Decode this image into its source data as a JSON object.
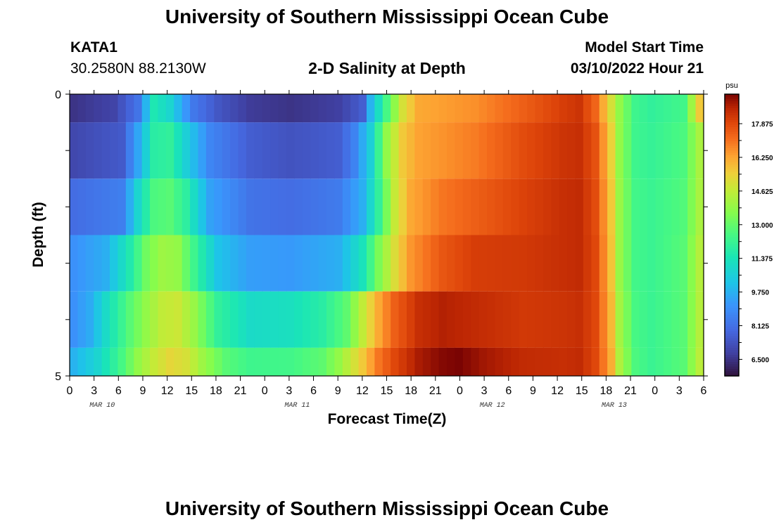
{
  "header": {
    "title": "University of Southern Mississippi Ocean Cube",
    "station": "KATA1",
    "coords": "30.2580N  88.2130W",
    "plot_title": "2-D Salinity at Depth",
    "model_label": "Model Start Time",
    "model_time": "03/10/2022 Hour 21"
  },
  "footer": {
    "title": "University of Southern Mississippi Ocean Cube"
  },
  "chart_data": {
    "type": "heatmap",
    "title": "2-D Salinity at Depth",
    "xlabel": "Forecast Time(Z)",
    "ylabel": "Depth (ft)",
    "x_tick_labels": [
      "0",
      "3",
      "6",
      "9",
      "12",
      "15",
      "18",
      "21",
      "0",
      "3",
      "6",
      "9",
      "12",
      "15",
      "18",
      "21",
      "0",
      "3",
      "6",
      "9",
      "12",
      "15",
      "18",
      "21",
      "0",
      "3",
      "6"
    ],
    "day_labels": [
      {
        "label": "MAR 10",
        "hour": 4
      },
      {
        "label": "MAR 11",
        "hour": 28
      },
      {
        "label": "MAR 12",
        "hour": 52
      },
      {
        "label": "MAR 13",
        "hour": 67
      }
    ],
    "y_tick_labels": [
      "0",
      "5"
    ],
    "ylim": [
      0,
      5
    ],
    "xlim_hours": [
      0,
      78
    ],
    "colorbar": {
      "unit": "psu",
      "range": [
        5.7,
        19.3
      ],
      "ticks": [
        "17.875",
        "16.250",
        "14.625",
        "13.000",
        "11.375",
        "9.750",
        "8.125",
        "6.500"
      ],
      "tick_values": [
        17.875,
        16.25,
        14.625,
        13.0,
        11.375,
        9.75,
        8.125,
        6.5
      ]
    },
    "rows": [
      {
        "depth_band": "0-0.5",
        "points": [
          [
            0,
            6.5
          ],
          [
            5,
            6.9
          ],
          [
            8,
            8.2
          ],
          [
            10,
            11.5
          ],
          [
            12,
            10.8
          ],
          [
            15,
            8.3
          ],
          [
            18,
            7.4
          ],
          [
            22,
            6.7
          ],
          [
            27,
            6.5
          ],
          [
            33,
            6.8
          ],
          [
            36,
            7.6
          ],
          [
            37,
            9.8
          ],
          [
            39,
            12.5
          ],
          [
            41,
            15.0
          ],
          [
            43,
            16.2
          ],
          [
            50,
            16.6
          ],
          [
            56,
            17.4
          ],
          [
            61,
            18.1
          ],
          [
            63,
            18.3
          ],
          [
            65,
            17.3
          ],
          [
            67,
            15.0
          ],
          [
            68,
            13.8
          ],
          [
            70,
            12.3
          ],
          [
            72,
            12.0
          ],
          [
            76,
            12.4
          ],
          [
            77,
            14.0
          ],
          [
            78,
            15.6
          ]
        ]
      },
      {
        "depth_band": "0.5-1.5",
        "points": [
          [
            0,
            7.0
          ],
          [
            6,
            7.5
          ],
          [
            8,
            9.5
          ],
          [
            10,
            11.8
          ],
          [
            12,
            12.0
          ],
          [
            14,
            10.6
          ],
          [
            17,
            8.7
          ],
          [
            22,
            7.6
          ],
          [
            27,
            7.3
          ],
          [
            33,
            7.6
          ],
          [
            35,
            8.6
          ],
          [
            37,
            10.6
          ],
          [
            39,
            13.8
          ],
          [
            41,
            15.6
          ],
          [
            43,
            16.3
          ],
          [
            50,
            16.9
          ],
          [
            56,
            17.8
          ],
          [
            61,
            18.3
          ],
          [
            63,
            18.4
          ],
          [
            65,
            17.7
          ],
          [
            67,
            15.4
          ],
          [
            68,
            13.8
          ],
          [
            70,
            12.3
          ],
          [
            72,
            12.1
          ],
          [
            76,
            12.6
          ],
          [
            78,
            14.2
          ]
        ]
      },
      {
        "depth_band": "1.5-2.5",
        "points": [
          [
            0,
            8.0
          ],
          [
            6,
            8.5
          ],
          [
            8,
            10.8
          ],
          [
            10,
            12.6
          ],
          [
            12,
            12.8
          ],
          [
            14,
            11.9
          ],
          [
            17,
            9.4
          ],
          [
            22,
            8.2
          ],
          [
            27,
            8.0
          ],
          [
            33,
            8.4
          ],
          [
            36,
            9.7
          ],
          [
            38,
            12.0
          ],
          [
            40,
            14.7
          ],
          [
            42,
            16.2
          ],
          [
            46,
            17.0
          ],
          [
            50,
            17.4
          ],
          [
            56,
            18.0
          ],
          [
            61,
            18.4
          ],
          [
            63,
            18.5
          ],
          [
            65,
            17.8
          ],
          [
            67,
            15.6
          ],
          [
            68,
            13.9
          ],
          [
            70,
            12.4
          ],
          [
            72,
            12.2
          ],
          [
            76,
            12.7
          ],
          [
            78,
            14.2
          ]
        ]
      },
      {
        "depth_band": "2.5-3.5",
        "points": [
          [
            0,
            9.0
          ],
          [
            4,
            9.7
          ],
          [
            7,
            11.6
          ],
          [
            9,
            13.2
          ],
          [
            11,
            14.0
          ],
          [
            13,
            13.8
          ],
          [
            15,
            12.3
          ],
          [
            18,
            10.2
          ],
          [
            22,
            9.3
          ],
          [
            27,
            9.2
          ],
          [
            33,
            9.7
          ],
          [
            36,
            11.3
          ],
          [
            38,
            13.4
          ],
          [
            40,
            15.1
          ],
          [
            42,
            16.5
          ],
          [
            46,
            17.6
          ],
          [
            50,
            18.1
          ],
          [
            56,
            18.2
          ],
          [
            61,
            18.4
          ],
          [
            63,
            18.5
          ],
          [
            65,
            17.9
          ],
          [
            67,
            15.7
          ],
          [
            68,
            13.9
          ],
          [
            70,
            12.4
          ],
          [
            72,
            12.2
          ],
          [
            76,
            12.8
          ],
          [
            78,
            14.4
          ]
        ]
      },
      {
        "depth_band": "3.5-4.5",
        "points": [
          [
            0,
            9.0
          ],
          [
            2,
            9.6
          ],
          [
            4,
            11.0
          ],
          [
            7,
            12.8
          ],
          [
            9,
            13.8
          ],
          [
            11,
            14.6
          ],
          [
            13,
            14.8
          ],
          [
            15,
            13.9
          ],
          [
            18,
            12.0
          ],
          [
            22,
            11.0
          ],
          [
            27,
            11.2
          ],
          [
            31,
            11.8
          ],
          [
            34,
            12.9
          ],
          [
            36,
            14.6
          ],
          [
            38,
            16.2
          ],
          [
            40,
            17.4
          ],
          [
            43,
            18.4
          ],
          [
            46,
            18.7
          ],
          [
            50,
            18.5
          ],
          [
            56,
            18.2
          ],
          [
            61,
            18.3
          ],
          [
            63,
            18.4
          ],
          [
            65,
            17.9
          ],
          [
            67,
            15.9
          ],
          [
            68,
            14.1
          ],
          [
            70,
            12.5
          ],
          [
            72,
            12.2
          ],
          [
            76,
            12.8
          ],
          [
            78,
            14.4
          ]
        ]
      },
      {
        "depth_band": "4.5-5",
        "points": [
          [
            0,
            9.8
          ],
          [
            3,
            10.8
          ],
          [
            6,
            12.5
          ],
          [
            8,
            13.8
          ],
          [
            10,
            14.7
          ],
          [
            12,
            15.3
          ],
          [
            14,
            15.0
          ],
          [
            16,
            14.0
          ],
          [
            19,
            12.8
          ],
          [
            22,
            12.3
          ],
          [
            27,
            12.4
          ],
          [
            31,
            12.9
          ],
          [
            33,
            13.8
          ],
          [
            36,
            15.6
          ],
          [
            38,
            17.0
          ],
          [
            40,
            17.9
          ],
          [
            43,
            18.8
          ],
          [
            46,
            19.2
          ],
          [
            48,
            19.3
          ],
          [
            51,
            18.9
          ],
          [
            56,
            18.5
          ],
          [
            61,
            18.4
          ],
          [
            63,
            18.5
          ],
          [
            65,
            17.9
          ],
          [
            67,
            16.1
          ],
          [
            68,
            14.3
          ],
          [
            70,
            12.6
          ],
          [
            72,
            12.2
          ],
          [
            76,
            12.8
          ],
          [
            78,
            14.5
          ]
        ]
      }
    ],
    "grid": false,
    "legend": "colorbar-right"
  }
}
